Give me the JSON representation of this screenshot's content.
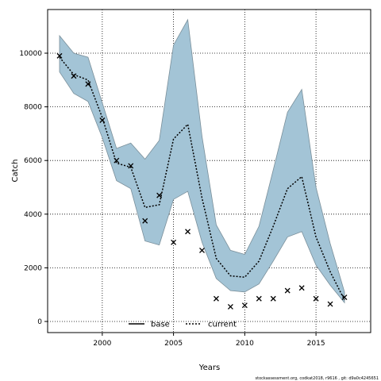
{
  "chart_data": {
    "type": "line",
    "title": "",
    "xlabel": "Years",
    "ylabel": "Catch",
    "xlim": [
      1997,
      2017
    ],
    "ylim": [
      0,
      11000
    ],
    "x_ticks": [
      2000,
      2005,
      2010,
      2015
    ],
    "y_ticks": [
      0,
      2000,
      4000,
      6000,
      8000,
      10000
    ],
    "grid": true,
    "legend_position": "bottom-center",
    "legend": [
      {
        "name": "base",
        "style": "solid",
        "color": "#000000"
      },
      {
        "name": "current",
        "style": "dotted",
        "color": "#000000"
      }
    ],
    "x": [
      1997,
      1998,
      1999,
      2000,
      2001,
      2002,
      2003,
      2004,
      2005,
      2006,
      2007,
      2008,
      2009,
      2010,
      2011,
      2012,
      2013,
      2014,
      2015,
      2016,
      2017
    ],
    "series": [
      {
        "name": "current",
        "kind": "dotted-line",
        "values": [
          9850,
          9200,
          9000,
          7600,
          5900,
          5750,
          4250,
          4350,
          6800,
          7350,
          4600,
          2350,
          1700,
          1650,
          2250,
          3550,
          4950,
          5400,
          3150,
          1850,
          800
        ],
        "band_low": [
          9300,
          8500,
          8200,
          6850,
          5250,
          4950,
          3000,
          2850,
          4550,
          4850,
          2950,
          1600,
          1150,
          1100,
          1400,
          2250,
          3150,
          3350,
          2100,
          1350,
          700
        ],
        "band_high": [
          10650,
          10000,
          9850,
          8150,
          6450,
          6650,
          6050,
          6750,
          10300,
          11250,
          6900,
          3600,
          2650,
          2500,
          3550,
          5650,
          7800,
          8650,
          5000,
          2900,
          1100
        ]
      },
      {
        "name": "base",
        "kind": "points",
        "values": [
          9900,
          9150,
          8850,
          7500,
          6000,
          5800,
          3750,
          4700,
          2950,
          3350,
          2650,
          850,
          550,
          600,
          850,
          850,
          1150,
          1250,
          850,
          650,
          900
        ]
      }
    ],
    "colors": {
      "band_fill": "#a3c4d6",
      "band_stroke": "#7a8f9a",
      "line": "#000000",
      "grid": "#000000"
    }
  },
  "footer": "stockassessment.org, codkat2018, r9616 , git: d9a0c4245651"
}
